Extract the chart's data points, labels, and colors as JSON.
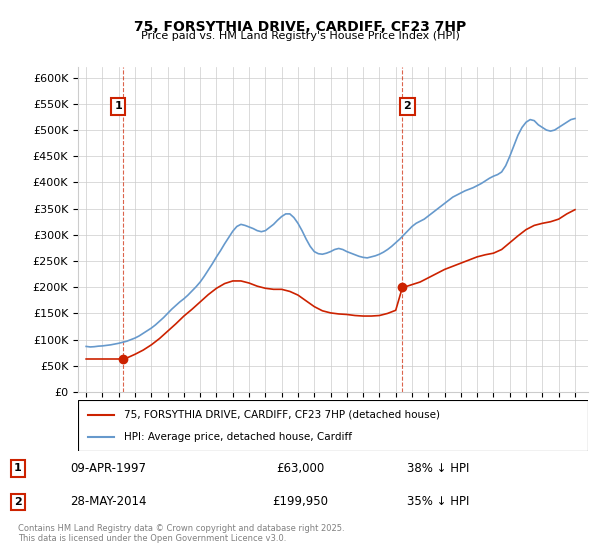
{
  "title": "75, FORSYTHIA DRIVE, CARDIFF, CF23 7HP",
  "subtitle": "Price paid vs. HM Land Registry's House Price Index (HPI)",
  "xlabel": "",
  "ylabel": "",
  "ylim": [
    0,
    620000
  ],
  "yticks": [
    0,
    50000,
    100000,
    150000,
    200000,
    250000,
    300000,
    350000,
    400000,
    450000,
    500000,
    550000,
    600000
  ],
  "ytick_labels": [
    "£0",
    "£50K",
    "£100K",
    "£150K",
    "£200K",
    "£250K",
    "£300K",
    "£350K",
    "£400K",
    "£450K",
    "£500K",
    "£550K",
    "£600K"
  ],
  "xlim": [
    1994.5,
    2025.8
  ],
  "xticks": [
    1995,
    1996,
    1997,
    1998,
    1999,
    2000,
    2001,
    2002,
    2003,
    2004,
    2005,
    2006,
    2007,
    2008,
    2009,
    2010,
    2011,
    2012,
    2013,
    2014,
    2015,
    2016,
    2017,
    2018,
    2019,
    2020,
    2021,
    2022,
    2023,
    2024,
    2025
  ],
  "sale1_x": 1997.27,
  "sale1_y": 63000,
  "sale2_x": 2014.41,
  "sale2_y": 199950,
  "sale1_label": "1",
  "sale2_label": "2",
  "hpi_color": "#6699cc",
  "price_color": "#cc2200",
  "vline_color": "#cc2200",
  "legend_label_price": "75, FORSYTHIA DRIVE, CARDIFF, CF23 7HP (detached house)",
  "legend_label_hpi": "HPI: Average price, detached house, Cardiff",
  "table_row1": [
    "1",
    "09-APR-1997",
    "£63,000",
    "38% ↓ HPI"
  ],
  "table_row2": [
    "2",
    "28-MAY-2014",
    "£199,950",
    "35% ↓ HPI"
  ],
  "footer": "Contains HM Land Registry data © Crown copyright and database right 2025.\nThis data is licensed under the Open Government Licence v3.0.",
  "background_color": "#ffffff",
  "grid_color": "#cccccc",
  "hpi_data_x": [
    1995.0,
    1995.25,
    1995.5,
    1995.75,
    1996.0,
    1996.25,
    1996.5,
    1996.75,
    1997.0,
    1997.25,
    1997.5,
    1997.75,
    1998.0,
    1998.25,
    1998.5,
    1998.75,
    1999.0,
    1999.25,
    1999.5,
    1999.75,
    2000.0,
    2000.25,
    2000.5,
    2000.75,
    2001.0,
    2001.25,
    2001.5,
    2001.75,
    2002.0,
    2002.25,
    2002.5,
    2002.75,
    2003.0,
    2003.25,
    2003.5,
    2003.75,
    2004.0,
    2004.25,
    2004.5,
    2004.75,
    2005.0,
    2005.25,
    2005.5,
    2005.75,
    2006.0,
    2006.25,
    2006.5,
    2006.75,
    2007.0,
    2007.25,
    2007.5,
    2007.75,
    2008.0,
    2008.25,
    2008.5,
    2008.75,
    2009.0,
    2009.25,
    2009.5,
    2009.75,
    2010.0,
    2010.25,
    2010.5,
    2010.75,
    2011.0,
    2011.25,
    2011.5,
    2011.75,
    2012.0,
    2012.25,
    2012.5,
    2012.75,
    2013.0,
    2013.25,
    2013.5,
    2013.75,
    2014.0,
    2014.25,
    2014.5,
    2014.75,
    2015.0,
    2015.25,
    2015.5,
    2015.75,
    2016.0,
    2016.25,
    2016.5,
    2016.75,
    2017.0,
    2017.25,
    2017.5,
    2017.75,
    2018.0,
    2018.25,
    2018.5,
    2018.75,
    2019.0,
    2019.25,
    2019.5,
    2019.75,
    2020.0,
    2020.25,
    2020.5,
    2020.75,
    2021.0,
    2021.25,
    2021.5,
    2021.75,
    2022.0,
    2022.25,
    2022.5,
    2022.75,
    2023.0,
    2023.25,
    2023.5,
    2023.75,
    2024.0,
    2024.25,
    2024.5,
    2024.75,
    2025.0
  ],
  "hpi_data_y": [
    87000,
    86000,
    86500,
    87500,
    88000,
    89000,
    90000,
    91500,
    93000,
    95000,
    97000,
    100000,
    103000,
    107000,
    112000,
    117000,
    122000,
    128000,
    135000,
    142000,
    150000,
    158000,
    165000,
    172000,
    178000,
    185000,
    193000,
    201000,
    210000,
    221000,
    233000,
    245000,
    258000,
    270000,
    283000,
    295000,
    307000,
    316000,
    320000,
    318000,
    315000,
    312000,
    308000,
    306000,
    308000,
    314000,
    320000,
    328000,
    335000,
    340000,
    340000,
    333000,
    322000,
    308000,
    292000,
    278000,
    268000,
    264000,
    263000,
    265000,
    268000,
    272000,
    274000,
    272000,
    268000,
    265000,
    262000,
    259000,
    257000,
    256000,
    258000,
    260000,
    263000,
    267000,
    272000,
    278000,
    285000,
    292000,
    300000,
    308000,
    316000,
    322000,
    326000,
    330000,
    336000,
    342000,
    348000,
    354000,
    360000,
    366000,
    372000,
    376000,
    380000,
    384000,
    387000,
    390000,
    394000,
    398000,
    403000,
    408000,
    412000,
    415000,
    420000,
    432000,
    450000,
    470000,
    490000,
    505000,
    515000,
    520000,
    518000,
    510000,
    505000,
    500000,
    498000,
    500000,
    505000,
    510000,
    515000,
    520000,
    522000
  ],
  "price_data_x": [
    1995.0,
    1995.5,
    1996.0,
    1996.5,
    1997.0,
    1997.27,
    1997.5,
    1998.0,
    1998.5,
    1999.0,
    1999.5,
    2000.0,
    2000.5,
    2001.0,
    2001.5,
    2002.0,
    2002.5,
    2003.0,
    2003.5,
    2004.0,
    2004.5,
    2005.0,
    2005.5,
    2006.0,
    2006.5,
    2007.0,
    2007.5,
    2008.0,
    2008.5,
    2009.0,
    2009.5,
    2010.0,
    2010.5,
    2011.0,
    2011.5,
    2012.0,
    2012.5,
    2013.0,
    2013.5,
    2014.0,
    2014.41,
    2014.5,
    2015.0,
    2015.5,
    2016.0,
    2016.5,
    2017.0,
    2017.5,
    2018.0,
    2018.5,
    2019.0,
    2019.5,
    2020.0,
    2020.5,
    2021.0,
    2021.5,
    2022.0,
    2022.5,
    2023.0,
    2023.5,
    2024.0,
    2024.5,
    2025.0
  ],
  "price_data_y": [
    63000,
    63000,
    63000,
    63000,
    63000,
    63000,
    65000,
    72000,
    80000,
    90000,
    102000,
    116000,
    130000,
    145000,
    158000,
    172000,
    186000,
    198000,
    207000,
    212000,
    212000,
    208000,
    202000,
    198000,
    196000,
    196000,
    192000,
    185000,
    174000,
    163000,
    155000,
    151000,
    149000,
    148000,
    146000,
    145000,
    145000,
    146000,
    150000,
    156000,
    199950,
    199950,
    205000,
    210000,
    218000,
    226000,
    234000,
    240000,
    246000,
    252000,
    258000,
    262000,
    265000,
    272000,
    285000,
    298000,
    310000,
    318000,
    322000,
    325000,
    330000,
    340000,
    348000
  ]
}
